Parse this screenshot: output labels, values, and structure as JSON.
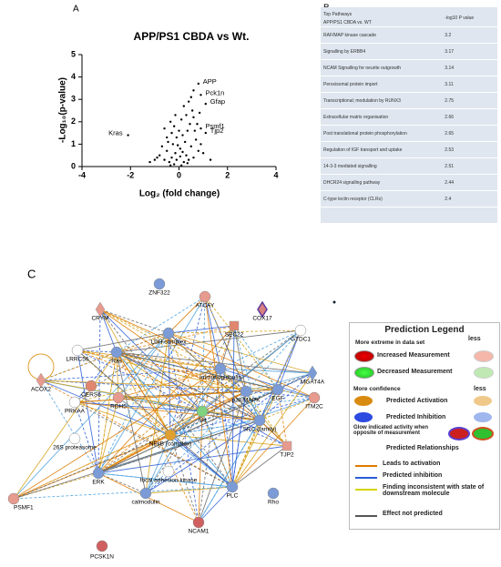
{
  "panel_labels": [
    "A",
    "B",
    "C"
  ],
  "chart_data": {
    "type": "scatter",
    "title": "APP/PS1 CBDA vs Wt.",
    "x_label": "Log₂ (fold change)",
    "y_label": "-Log₁₀(p-value)",
    "xlim": [
      -4,
      4
    ],
    "ylim": [
      0,
      5
    ],
    "xticks": [
      -4,
      -2,
      0,
      2,
      4
    ],
    "yticks": [
      0,
      1,
      2,
      3,
      4,
      5
    ],
    "color": "#000000",
    "x": [
      -0.2,
      0.1,
      -0.1,
      0.2,
      0.3,
      -0.3,
      0.05,
      -0.15,
      0.4,
      -0.4,
      0.5,
      -0.5,
      0.25,
      -0.25,
      0.6,
      -0.6,
      0.15,
      -0.1,
      0.35,
      -0.3,
      0.7,
      -0.7,
      0.45,
      -0.2,
      0.1,
      0.3,
      -0.35,
      0.55,
      0.2,
      0.4,
      0.6,
      -0.5,
      0.8,
      -0.8,
      0.9,
      -0.9,
      1.0,
      -1.0,
      0.05,
      -0.05,
      0.15,
      -0.45,
      0.65,
      0.75,
      0.5,
      0.6,
      0.8,
      0.9,
      1.1,
      0.9,
      1.1,
      -2.1,
      -1.2,
      1.3,
      0.0,
      -0.6,
      0.35,
      -0.35,
      0.85,
      -0.15
    ],
    "y": [
      0.1,
      0.05,
      0.3,
      0.2,
      0.5,
      0.4,
      0.8,
      0.6,
      0.3,
      0.2,
      0.9,
      0.7,
      1.1,
      1.0,
      0.4,
      0.3,
      1.4,
      1.3,
      1.6,
      1.5,
      1.2,
      0.9,
      1.9,
      1.8,
      2.1,
      2.3,
      2.0,
      2.5,
      2.7,
      2.9,
      2.2,
      1.3,
      0.7,
      0.5,
      1.0,
      0.4,
      0.6,
      0.3,
      0.45,
      0.95,
      0.65,
      1.1,
      1.6,
      1.9,
      3.1,
      3.4,
      3.7,
      3.2,
      2.8,
      1.7,
      1.5,
      1.4,
      0.2,
      0.3,
      1.6,
      1.7,
      0.15,
      0.05,
      2.4,
      2.3
    ],
    "labels": [
      null,
      null,
      null,
      null,
      null,
      null,
      null,
      null,
      null,
      null,
      null,
      null,
      null,
      null,
      null,
      null,
      null,
      null,
      null,
      null,
      null,
      null,
      null,
      null,
      null,
      null,
      null,
      null,
      null,
      null,
      null,
      null,
      null,
      null,
      null,
      null,
      null,
      null,
      null,
      null,
      null,
      null,
      null,
      null,
      null,
      null,
      "APP",
      "Pck1n",
      "Gfap",
      "Psmf1",
      "Tjp2",
      "Kras",
      null,
      null,
      null,
      null,
      null,
      null,
      null,
      null
    ]
  },
  "table": {
    "header": [
      "Top Pathways",
      "APP/PS1 CBDA vs. WT",
      "-log10 P value"
    ],
    "rows": [
      [
        "RAF/MAP kinase cascade",
        3.2
      ],
      [
        "Signalling by ERBB4",
        3.17
      ],
      [
        "NCAM Signalling for neurite outgrowth",
        3.14
      ],
      [
        "Peroxisomal protein import",
        3.11
      ],
      [
        "Transcriptional; modulation by RUNX3",
        2.75
      ],
      [
        "Extracellular matrix organisation",
        2.66
      ],
      [
        "Post translational protein phosphorylation",
        2.65
      ],
      [
        "Regulation of IGF transport and uptake",
        2.53
      ],
      [
        "14-3-3 mediated signalling",
        2.51
      ],
      [
        "DHCR24 signalling pathway",
        2.44
      ],
      [
        "C-type lectin receptor (CLRs)",
        2.4
      ]
    ]
  },
  "network": {
    "nodes": [
      "ZNF322",
      "ATCAY",
      "CRYM",
      "COX17",
      "SEC22",
      "GTDC1",
      "LDH complex",
      "LRRC56",
      "Ras",
      "Immunoglobulin",
      "MGAT4A",
      "ACOX2",
      "CERS6",
      "RDH5",
      "p38 MAPK",
      "EGF",
      "ITM2C",
      "PRKAA",
      "Akt",
      "NFkB (complex)",
      "SRC (family)",
      "26S proteasome",
      "TJP2",
      "ERK",
      "focal adhesion kinase",
      "calmodulin",
      "PLC",
      "Rho",
      "PSMF1",
      "NCAM1",
      "PCSK1N"
    ]
  },
  "legend": {
    "title": "Prediction Legend",
    "extreme": "More extreme in data set",
    "less": "less",
    "increased": "Increased Measurement",
    "decreased": "Decreased Measurement",
    "confidence": "More confidence",
    "less2": "less",
    "activation": "Predicted Activation",
    "inhibition": "Predicted Inhibition",
    "glow": "Glow indicated activity when opposite of measurement",
    "relationships": "Predicted Relationships",
    "leads": "Leads to activation",
    "pred_inhibition": "Predicted inhibition",
    "inconsistent": "Finding inconsistent with state of downstream molecule",
    "not_predicted": "Effect not predicted"
  }
}
